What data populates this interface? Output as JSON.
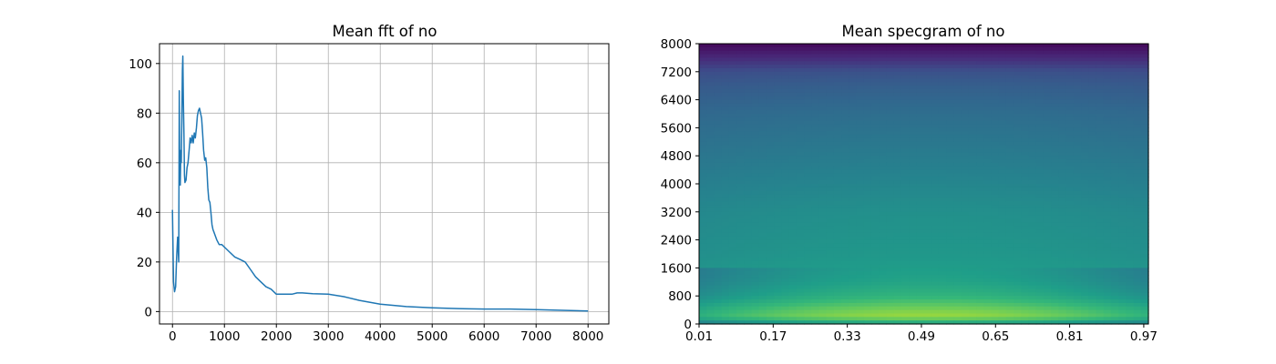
{
  "figure": {
    "panels": [
      {
        "title": "Mean fft of no"
      },
      {
        "title": "Mean specgram of no"
      }
    ]
  },
  "chart_data": [
    {
      "type": "line",
      "title": "Mean fft of no",
      "xlabel": "",
      "ylabel": "",
      "xlim": [
        -250,
        8400
      ],
      "ylim": [
        -5,
        108
      ],
      "grid": true,
      "line_color": "#1f77b4",
      "x_ticks": [
        0,
        1000,
        2000,
        3000,
        4000,
        5000,
        6000,
        7000,
        8000
      ],
      "x_tick_labels": [
        "0",
        "1000",
        "2000",
        "3000",
        "4000",
        "5000",
        "6000",
        "7000",
        "8000"
      ],
      "y_ticks": [
        0,
        20,
        40,
        60,
        80,
        100
      ],
      "y_tick_labels": [
        "0",
        "20",
        "40",
        "60",
        "80",
        "100"
      ],
      "x": [
        0,
        20,
        40,
        60,
        80,
        100,
        120,
        130,
        140,
        150,
        160,
        170,
        180,
        190,
        200,
        210,
        220,
        230,
        240,
        260,
        280,
        300,
        320,
        340,
        360,
        380,
        400,
        420,
        440,
        460,
        480,
        500,
        520,
        540,
        560,
        580,
        600,
        620,
        640,
        660,
        680,
        700,
        720,
        740,
        760,
        780,
        800,
        850,
        900,
        950,
        1000,
        1100,
        1200,
        1300,
        1400,
        1500,
        1600,
        1700,
        1800,
        1900,
        2000,
        2100,
        2200,
        2300,
        2400,
        2500,
        2700,
        3000,
        3300,
        3600,
        4000,
        4500,
        5000,
        5500,
        6000,
        6500,
        7000,
        7500,
        8000
      ],
      "y": [
        41,
        12,
        8,
        10,
        22,
        30,
        20,
        89,
        55,
        51,
        65,
        60,
        77,
        97,
        103,
        85,
        72,
        55,
        52,
        53,
        58,
        60,
        65,
        70,
        68,
        71,
        68,
        72,
        70,
        74,
        79,
        81,
        82,
        80,
        78,
        72,
        65,
        61,
        62,
        58,
        50,
        45,
        44,
        40,
        35,
        33,
        32,
        29,
        27,
        27,
        26,
        24,
        22,
        21,
        20,
        17,
        14,
        12,
        10,
        9,
        7,
        7,
        7,
        7,
        7.5,
        7.5,
        7.2,
        7,
        6,
        4.5,
        3,
        2,
        1.5,
        1.2,
        1,
        1,
        0.8,
        0.5,
        0.2
      ]
    },
    {
      "type": "heatmap",
      "title": "Mean specgram of no",
      "xlabel": "",
      "ylabel": "",
      "xlim": [
        0.01,
        0.98
      ],
      "ylim": [
        0,
        8000
      ],
      "grid": false,
      "colormap": "viridis",
      "x_ticks": [
        0.01,
        0.17,
        0.33,
        0.49,
        0.65,
        0.81,
        0.97
      ],
      "x_tick_labels": [
        "0.01",
        "0.17",
        "0.33",
        "0.49",
        "0.65",
        "0.81",
        "0.97"
      ],
      "y_ticks": [
        0,
        800,
        1600,
        2400,
        3200,
        4000,
        4800,
        5600,
        6400,
        7200,
        8000
      ],
      "y_tick_labels": [
        "0",
        "800",
        "1600",
        "2400",
        "3200",
        "4000",
        "4800",
        "5600",
        "6400",
        "7200",
        "8000"
      ],
      "x": [
        0.01,
        0.05,
        0.09,
        0.13,
        0.17,
        0.21,
        0.25,
        0.29,
        0.33,
        0.37,
        0.41,
        0.45,
        0.49,
        0.53,
        0.57,
        0.61,
        0.65,
        0.69,
        0.73,
        0.77,
        0.81,
        0.85,
        0.89,
        0.93,
        0.97
      ],
      "y": [
        0,
        200,
        400,
        600,
        800,
        1200,
        1600,
        2000,
        2400,
        2800,
        3200,
        3600,
        4000,
        4400,
        4800,
        5200,
        5600,
        6000,
        6400,
        6800,
        7200,
        7600,
        8000
      ],
      "row_profile": [
        0.55,
        0.85,
        0.8,
        0.72,
        0.65,
        0.58,
        0.55,
        0.53,
        0.52,
        0.51,
        0.5,
        0.48,
        0.46,
        0.44,
        0.42,
        0.4,
        0.38,
        0.36,
        0.33,
        0.3,
        0.25,
        0.12,
        0.02
      ],
      "column_profile": [
        0.35,
        0.45,
        0.55,
        0.62,
        0.7,
        0.77,
        0.83,
        0.88,
        0.92,
        0.95,
        0.98,
        1.0,
        1.0,
        1.0,
        0.99,
        0.97,
        0.94,
        0.9,
        0.85,
        0.8,
        0.73,
        0.66,
        0.58,
        0.5,
        0.42
      ]
    }
  ]
}
